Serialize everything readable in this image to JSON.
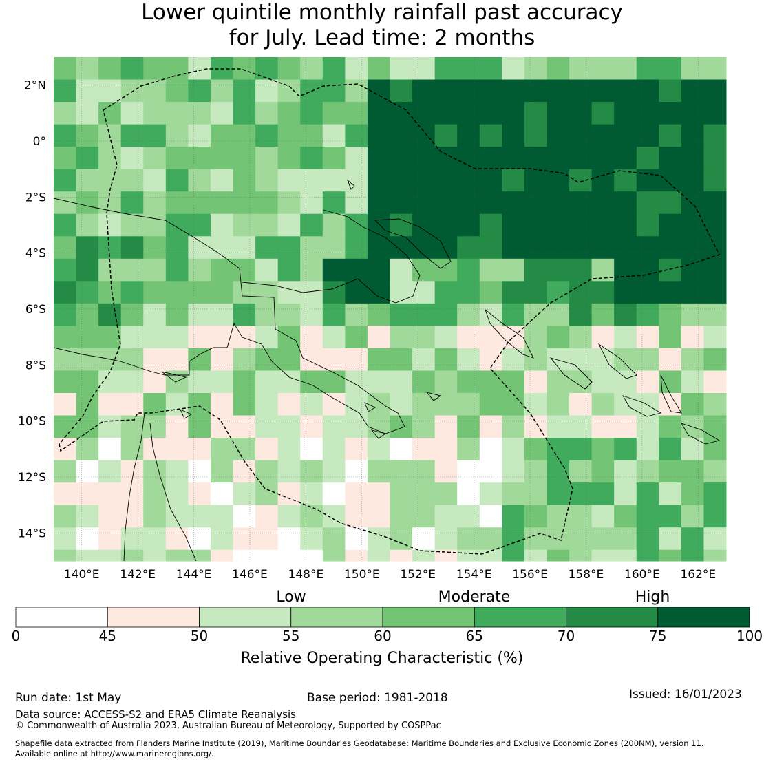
{
  "title": {
    "line1": "Lower quintile monthly rainfall past accuracy",
    "line2": "for July. Lead time: 2 months"
  },
  "map": {
    "lon_range": [
      139,
      163
    ],
    "lat_range": [
      -15,
      3
    ],
    "x_ticks": [
      {
        "value": 140,
        "label": "140°E"
      },
      {
        "value": 142,
        "label": "142°E"
      },
      {
        "value": 144,
        "label": "144°E"
      },
      {
        "value": 146,
        "label": "146°E"
      },
      {
        "value": 148,
        "label": "148°E"
      },
      {
        "value": 150,
        "label": "150°E"
      },
      {
        "value": 152,
        "label": "152°E"
      },
      {
        "value": 154,
        "label": "154°E"
      },
      {
        "value": 156,
        "label": "156°E"
      },
      {
        "value": 158,
        "label": "158°E"
      },
      {
        "value": 160,
        "label": "160°E"
      },
      {
        "value": 162,
        "label": "162°E"
      }
    ],
    "y_ticks": [
      {
        "value": 2,
        "label": "2°N"
      },
      {
        "value": 0,
        "label": "0°"
      },
      {
        "value": -2,
        "label": "2°S"
      },
      {
        "value": -4,
        "label": "4°S"
      },
      {
        "value": -6,
        "label": "6°S"
      },
      {
        "value": -8,
        "label": "8°S"
      },
      {
        "value": -10,
        "label": "10°S"
      },
      {
        "value": -12,
        "label": "12°S"
      },
      {
        "value": -14,
        "label": "14°S"
      }
    ],
    "grid": "on",
    "grid_cell_degrees": 0.8,
    "notable_regions": [
      {
        "name": "equatorial high-accuracy block",
        "lon": [
          150,
          163
        ],
        "lat": [
          -4,
          2.4
        ],
        "class": 7
      },
      {
        "name": "eastern ocean high-accuracy block",
        "lon": [
          159,
          163
        ],
        "lat": [
          -6,
          -3
        ],
        "class": 7
      },
      {
        "name": "Solomon Sea west band",
        "lon": [
          149,
          151
        ],
        "lat": [
          -5.5,
          -4
        ],
        "class": 7
      }
    ]
  },
  "colorbar": {
    "category_labels": [
      "Low",
      "Moderate",
      "High"
    ],
    "boundaries": [
      "0",
      "45",
      "50",
      "55",
      "60",
      "65",
      "70",
      "75",
      "100"
    ],
    "colors": [
      "#ffffff",
      "#fde9e0",
      "#c7e9c0",
      "#a1d99b",
      "#74c476",
      "#41ab5d",
      "#238b45",
      "#005a32"
    ],
    "title": "Relative Operating Characteristic (%)"
  },
  "footer": {
    "run_date": "Run date: 1st May",
    "base_period": "Base period: 1981-2018",
    "issued": "Issued: 16/01/2023",
    "data_source": "Data source: ACCESS-S2 and ERA5 Climate Reanalysis",
    "copyright": "© Commonwealth of Australia 2023, Australian Bureau of Meteorology, Supported by COSPPac",
    "shapefile_line1": "Shapefile data extracted from Flanders Marine Institute (2019), Maritime Boundaries Geodatabase: Maritime Boundaries and Exclusive Economic Zones (200NM), version 11.",
    "shapefile_line2": "Available online at http://www.marineregions.org/."
  }
}
